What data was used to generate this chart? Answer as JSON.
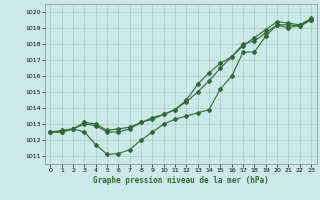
{
  "title": "Graphe pression niveau de la mer (hPa)",
  "bg_color": "#cce8e8",
  "line_color": "#2d6a2d",
  "grid_color": "#aacccc",
  "xlim": [
    -0.5,
    23.5
  ],
  "ylim": [
    1010.5,
    1020.5
  ],
  "yticks": [
    1011,
    1012,
    1013,
    1014,
    1015,
    1016,
    1017,
    1018,
    1019,
    1020
  ],
  "xticks": [
    0,
    1,
    2,
    3,
    4,
    5,
    6,
    7,
    8,
    9,
    10,
    11,
    12,
    13,
    14,
    15,
    16,
    17,
    18,
    19,
    20,
    21,
    22,
    23
  ],
  "series0": [
    1012.5,
    1012.6,
    1012.7,
    1012.5,
    1011.7,
    1011.1,
    1011.15,
    1011.4,
    1012.0,
    1012.5,
    1013.0,
    1013.3,
    1013.5,
    1013.7,
    1013.9,
    1015.2,
    1016.0,
    1017.5,
    1017.5,
    1018.5,
    1019.2,
    1019.0,
    1019.2,
    1019.5
  ],
  "series1": [
    1012.5,
    1012.5,
    1012.7,
    1013.1,
    1013.0,
    1012.6,
    1012.7,
    1012.8,
    1013.1,
    1013.4,
    1013.6,
    1013.9,
    1014.4,
    1015.0,
    1015.7,
    1016.5,
    1017.2,
    1017.9,
    1018.4,
    1018.9,
    1019.4,
    1019.3,
    1019.2,
    1019.6
  ],
  "series2": [
    1012.5,
    1012.5,
    1012.7,
    1013.0,
    1012.9,
    1012.5,
    1012.5,
    1012.7,
    1013.1,
    1013.3,
    1013.6,
    1013.9,
    1014.5,
    1015.5,
    1016.2,
    1016.8,
    1017.2,
    1018.0,
    1018.2,
    1018.7,
    1019.2,
    1019.2,
    1019.1,
    1019.5
  ]
}
